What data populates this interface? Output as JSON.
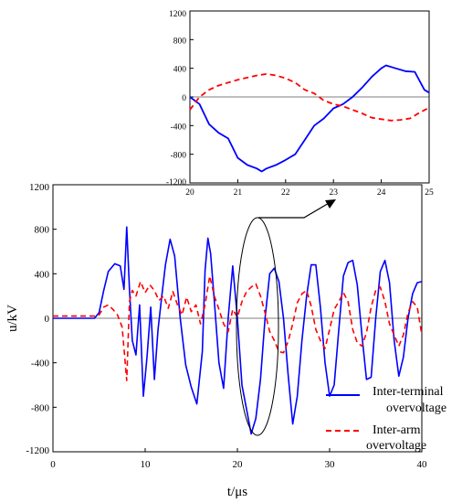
{
  "chart_data": [
    {
      "type": "line",
      "title": "",
      "xlabel": "t/μs",
      "ylabel": "u/kV",
      "xlim": [
        0,
        40
      ],
      "ylim": [
        -1200,
        1200
      ],
      "xticks": [
        "0",
        "10",
        "20",
        "30",
        "40"
      ],
      "yticks": [
        "1200",
        "800",
        "400",
        "0",
        "-400",
        "-800",
        "-1200"
      ],
      "grid": false,
      "legend_position": "bottom-right",
      "series": [
        {
          "name": "Inter-terminal overvoltage",
          "color": "#0000ff",
          "style": "solid",
          "x": [
            0,
            4.5,
            5.0,
            5.5,
            6.0,
            6.7,
            7.3,
            7.7,
            8.0,
            8.3,
            8.6,
            9.0,
            9.4,
            9.8,
            10.2,
            10.6,
            11.0,
            11.4,
            11.8,
            12.2,
            12.7,
            13.2,
            13.8,
            14.4,
            15.0,
            15.6,
            16.2,
            16.5,
            16.8,
            17.1,
            17.5,
            18.0,
            18.5,
            19.0,
            19.5,
            20.0,
            20.5,
            21.0,
            21.5,
            22.0,
            22.5,
            23.0,
            23.5,
            24.0,
            24.5,
            25.0,
            25.5,
            26.0,
            26.5,
            27.0,
            27.5,
            28.0,
            28.5,
            29.0,
            29.5,
            30.0,
            30.5,
            31.0,
            31.5,
            32.0,
            32.5,
            33.0,
            33.5,
            34.0,
            34.5,
            35.0,
            35.5,
            36.0,
            36.5,
            37.0,
            37.5,
            38.0,
            38.5,
            39.0,
            39.5,
            40.0
          ],
          "values": [
            0,
            0,
            50,
            250,
            420,
            490,
            470,
            260,
            820,
            260,
            -200,
            -330,
            120,
            -700,
            -350,
            100,
            -550,
            -100,
            200,
            480,
            710,
            560,
            0,
            -420,
            -620,
            -770,
            -300,
            430,
            720,
            580,
            150,
            -400,
            -630,
            0,
            470,
            0,
            -600,
            -820,
            -1040,
            -900,
            -550,
            0,
            400,
            450,
            330,
            0,
            -500,
            -950,
            -700,
            -200,
            200,
            480,
            480,
            100,
            -400,
            -700,
            -600,
            -100,
            380,
            500,
            520,
            300,
            -150,
            -550,
            -530,
            0,
            420,
            520,
            320,
            -200,
            -520,
            -350,
            0,
            220,
            320,
            330
          ]
        },
        {
          "name": "Inter-arm overvoltage",
          "color": "#ff0000",
          "style": "dashed",
          "x": [
            0,
            4.5,
            5.0,
            5.5,
            6.0,
            6.5,
            7.0,
            7.5,
            8.0,
            8.3,
            8.6,
            9.0,
            9.5,
            10.0,
            10.5,
            11.0,
            11.5,
            12.0,
            12.5,
            13.0,
            13.5,
            14.0,
            14.5,
            15.0,
            15.5,
            16.0,
            16.5,
            17.0,
            17.5,
            18.0,
            18.5,
            19.0,
            19.5,
            20.0,
            20.5,
            21.0,
            21.5,
            22.0,
            22.5,
            23.0,
            23.5,
            24.0,
            24.5,
            25.0,
            25.5,
            26.0,
            26.5,
            27.0,
            27.5,
            28.0,
            28.5,
            29.0,
            29.5,
            30.0,
            30.5,
            31.0,
            31.5,
            32.0,
            32.5,
            33.0,
            33.5,
            34.0,
            34.5,
            35.0,
            35.5,
            36.0,
            36.5,
            37.0,
            37.5,
            38.0,
            38.5,
            39.0,
            39.5,
            40.0
          ],
          "values": [
            20,
            20,
            30,
            100,
            120,
            80,
            30,
            -80,
            -560,
            150,
            250,
            200,
            330,
            230,
            300,
            250,
            160,
            200,
            90,
            240,
            120,
            30,
            190,
            60,
            120,
            -50,
            120,
            380,
            200,
            80,
            -50,
            -120,
            80,
            10,
            150,
            240,
            280,
            310,
            200,
            50,
            -120,
            -200,
            -300,
            -310,
            -210,
            -50,
            140,
            220,
            250,
            110,
            -100,
            -200,
            -270,
            -100,
            80,
            150,
            230,
            150,
            -100,
            -220,
            -250,
            -130,
            100,
            250,
            280,
            150,
            -50,
            -150,
            -250,
            -150,
            50,
            150,
            100,
            -150
          ]
        }
      ]
    },
    {
      "type": "line",
      "title": "",
      "xlabel": "",
      "ylabel": "",
      "xlim": [
        20,
        25
      ],
      "ylim": [
        -1200,
        1200
      ],
      "xticks": [
        "20",
        "21",
        "22",
        "23",
        "24",
        "25"
      ],
      "yticks": [
        "1200",
        "800",
        "400",
        "0",
        "-400",
        "-800",
        "-1200"
      ],
      "grid": false,
      "series": [
        {
          "color": "#0000ff",
          "style": "solid",
          "x": [
            20.0,
            20.2,
            20.4,
            20.6,
            20.8,
            21.0,
            21.2,
            21.4,
            21.5,
            21.6,
            21.8,
            22.0,
            22.2,
            22.4,
            22.6,
            22.8,
            23.0,
            23.2,
            23.4,
            23.6,
            23.8,
            24.0,
            24.1,
            24.3,
            24.5,
            24.7,
            24.9,
            25.0
          ],
          "values": [
            0,
            -100,
            -380,
            -500,
            -580,
            -850,
            -950,
            -1000,
            -1040,
            -1000,
            -950,
            -880,
            -800,
            -600,
            -400,
            -300,
            -160,
            -100,
            0,
            130,
            280,
            400,
            440,
            400,
            360,
            350,
            100,
            60
          ]
        },
        {
          "color": "#ff0000",
          "style": "dashed",
          "x": [
            20.0,
            20.2,
            20.4,
            20.6,
            20.8,
            21.0,
            21.2,
            21.4,
            21.6,
            21.8,
            22.0,
            22.2,
            22.4,
            22.6,
            22.8,
            23.0,
            23.2,
            23.4,
            23.6,
            23.8,
            24.0,
            24.2,
            24.4,
            24.6,
            24.8,
            25.0
          ],
          "values": [
            -180,
            0,
            100,
            160,
            200,
            240,
            270,
            300,
            320,
            300,
            260,
            200,
            100,
            50,
            -50,
            -100,
            -130,
            -180,
            -230,
            -290,
            -310,
            -330,
            -320,
            -300,
            -220,
            -150
          ]
        }
      ]
    }
  ],
  "annotation": {
    "ellipse_label": "",
    "arrow_target": "inset"
  }
}
